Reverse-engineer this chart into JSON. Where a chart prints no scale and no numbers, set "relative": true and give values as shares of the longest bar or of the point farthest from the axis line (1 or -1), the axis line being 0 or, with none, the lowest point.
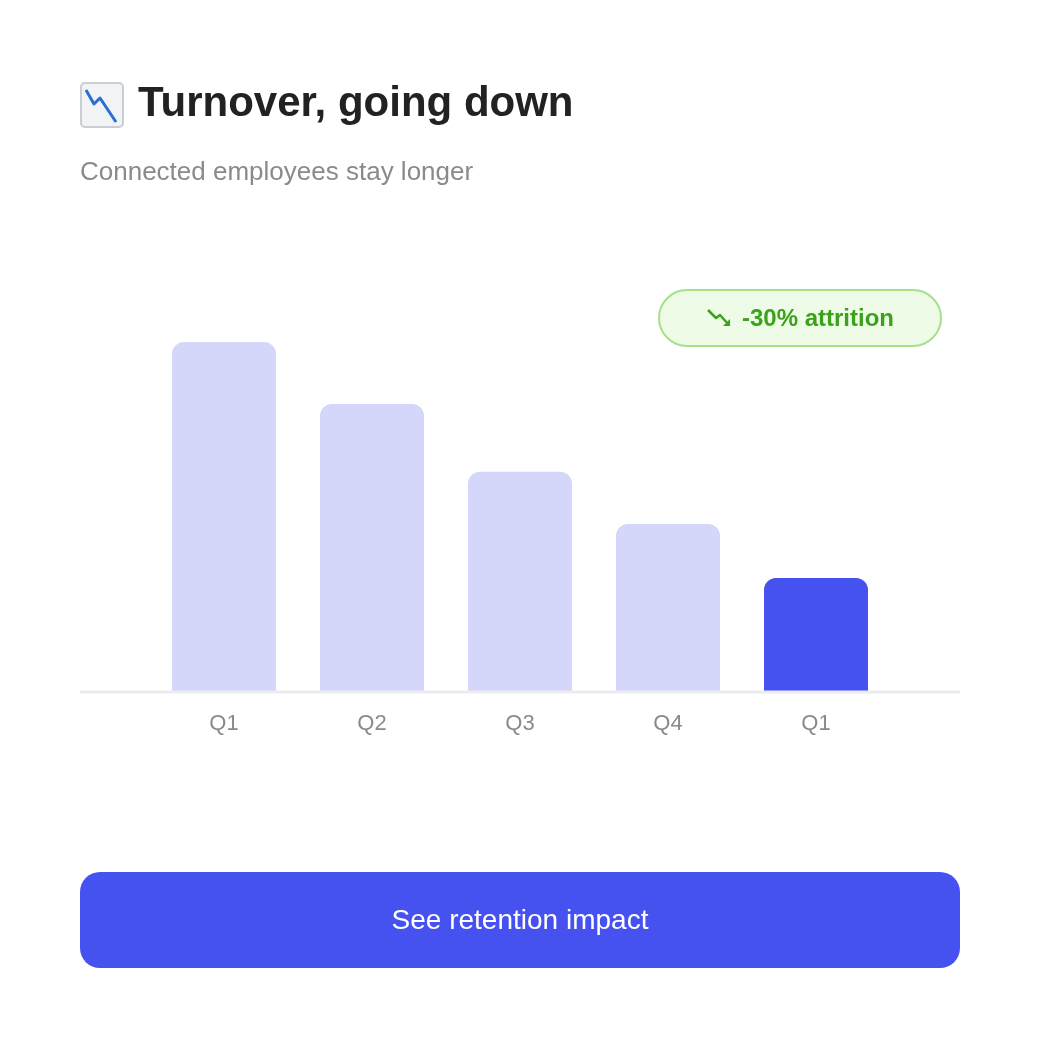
{
  "chart_data": {
    "type": "bar",
    "title": "Turnover, going down",
    "subtitle": "Connected employees stay longer",
    "categories": [
      "Q1",
      "Q2",
      "Q3",
      "Q4",
      "Q1"
    ],
    "values": [
      1,
      0.823,
      0.629,
      0.48,
      0.326
    ],
    "colors": [
      "#d4d7fa",
      "#d4d7fa",
      "#d4d7fa",
      "#d4d7fa",
      "#4652f0"
    ],
    "relative": true,
    "annotations": [
      "-30% attrition",
      "See retention impact"
    ]
  }
}
